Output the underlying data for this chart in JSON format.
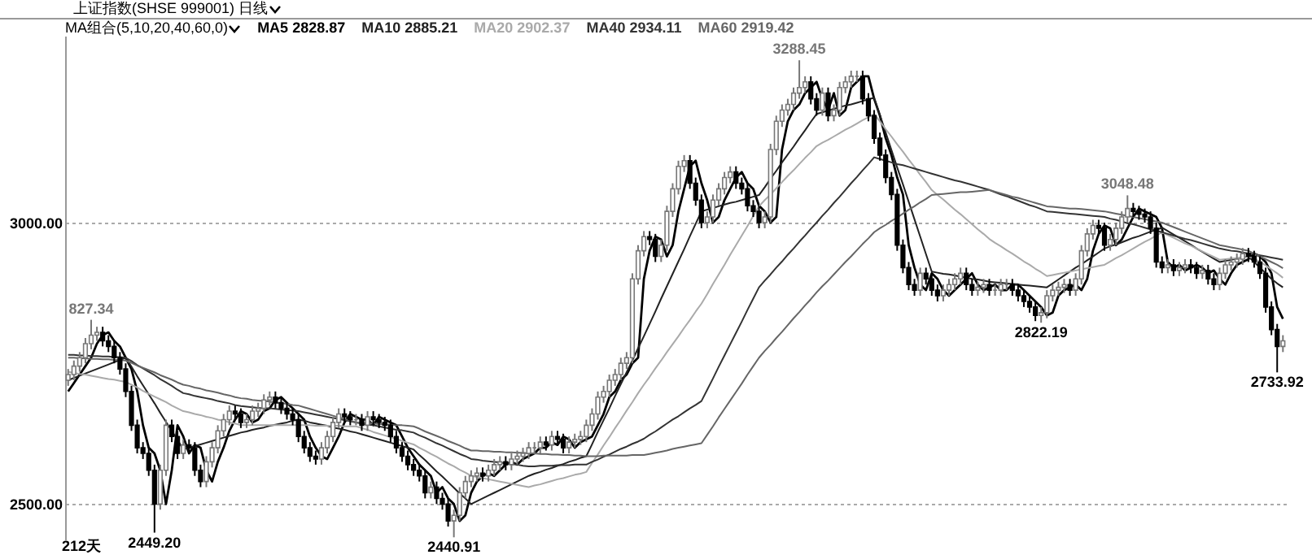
{
  "chart_data": {
    "type": "candlestick",
    "title": "上证指数(SHSE 999001) 日线",
    "subtitle": "MA组合(5,10,20,40,60,0)",
    "categories": [
      null,
      null,
      null,
      null,
      null,
      null,
      null,
      null,
      null,
      null,
      null,
      null,
      null,
      null,
      null,
      null,
      null,
      null,
      null,
      null,
      null,
      null,
      null,
      null,
      null,
      null,
      null,
      null,
      null,
      null,
      null,
      null,
      null,
      null,
      null,
      null,
      null,
      null,
      null,
      null,
      null,
      null,
      null,
      null,
      null,
      null,
      null,
      null,
      null,
      null,
      null,
      null,
      null,
      null,
      null,
      null,
      null,
      null,
      null,
      null,
      null,
      null,
      null,
      null,
      null,
      null,
      null,
      null,
      null,
      null,
      null,
      null,
      null,
      null,
      null,
      null,
      null,
      null,
      null,
      null,
      null,
      null,
      null,
      null,
      null,
      null,
      null,
      null,
      null,
      null,
      null,
      null,
      null,
      null,
      null,
      null,
      null,
      null,
      null,
      null,
      null,
      null,
      null,
      null,
      null,
      null,
      null,
      null,
      null,
      null,
      null,
      null,
      null,
      null,
      null,
      null,
      null,
      null,
      null,
      null,
      null,
      null,
      null,
      null,
      null,
      null,
      null,
      null,
      null,
      null,
      null,
      null,
      null,
      null,
      null,
      null,
      null,
      null,
      null,
      null,
      null,
      null,
      null,
      null,
      null,
      null,
      null,
      null,
      null,
      null,
      null,
      null,
      null,
      null,
      null,
      null,
      null,
      null,
      null,
      null,
      null,
      null,
      null,
      null,
      null,
      null,
      null,
      null,
      null,
      null,
      null,
      null,
      null,
      null,
      null,
      null,
      null,
      null,
      null,
      null,
      null,
      null,
      null,
      null,
      null,
      null,
      null,
      null,
      null,
      null,
      null,
      null,
      null,
      null,
      null,
      null,
      null,
      null,
      null,
      null,
      null,
      null,
      null,
      null,
      null,
      null,
      null,
      null,
      null,
      null,
      null,
      null
    ],
    "ohlc": [
      [
        2720,
        2740,
        2710,
        2730
      ],
      [
        2730,
        2755,
        2720,
        2745
      ],
      [
        2745,
        2770,
        2735,
        2760
      ],
      [
        2760,
        2795,
        2750,
        2785
      ],
      [
        2785,
        2827.34,
        2775,
        2800
      ],
      [
        2800,
        2815,
        2790,
        2805
      ],
      [
        2805,
        2815,
        2780,
        2790
      ],
      [
        2790,
        2800,
        2770,
        2780
      ],
      [
        2780,
        2790,
        2750,
        2760
      ],
      [
        2760,
        2770,
        2730,
        2740
      ],
      [
        2740,
        2750,
        2690,
        2700
      ],
      [
        2700,
        2710,
        2630,
        2640
      ],
      [
        2640,
        2650,
        2590,
        2600
      ],
      [
        2600,
        2610,
        2580,
        2590
      ],
      [
        2590,
        2600,
        2550,
        2560
      ],
      [
        2560,
        2570,
        2449.2,
        2500
      ],
      [
        2500,
        2570,
        2490,
        2560
      ],
      [
        2560,
        2650,
        2550,
        2640
      ],
      [
        2640,
        2650,
        2610,
        2620
      ],
      [
        2620,
        2630,
        2580,
        2590
      ],
      [
        2590,
        2615,
        2580,
        2605
      ],
      [
        2605,
        2615,
        2590,
        2600
      ],
      [
        2600,
        2610,
        2550,
        2560
      ],
      [
        2560,
        2570,
        2530,
        2540
      ],
      [
        2540,
        2585,
        2530,
        2575
      ],
      [
        2575,
        2610,
        2565,
        2600
      ],
      [
        2600,
        2640,
        2590,
        2630
      ],
      [
        2630,
        2660,
        2620,
        2650
      ],
      [
        2650,
        2675,
        2640,
        2665
      ],
      [
        2665,
        2675,
        2650,
        2660
      ],
      [
        2660,
        2670,
        2635,
        2645
      ],
      [
        2645,
        2660,
        2635,
        2650
      ],
      [
        2650,
        2675,
        2640,
        2665
      ],
      [
        2665,
        2680,
        2655,
        2670
      ],
      [
        2670,
        2695,
        2660,
        2685
      ],
      [
        2685,
        2700,
        2675,
        2690
      ],
      [
        2690,
        2700,
        2670,
        2680
      ],
      [
        2680,
        2690,
        2660,
        2670
      ],
      [
        2670,
        2680,
        2650,
        2660
      ],
      [
        2660,
        2670,
        2640,
        2650
      ],
      [
        2650,
        2660,
        2610,
        2620
      ],
      [
        2620,
        2630,
        2590,
        2600
      ],
      [
        2600,
        2610,
        2575,
        2585
      ],
      [
        2585,
        2595,
        2570,
        2580
      ],
      [
        2580,
        2610,
        2570,
        2600
      ],
      [
        2600,
        2630,
        2590,
        2620
      ],
      [
        2620,
        2655,
        2610,
        2645
      ],
      [
        2645,
        2670,
        2635,
        2660
      ],
      [
        2660,
        2670,
        2645,
        2655
      ],
      [
        2655,
        2665,
        2640,
        2650
      ],
      [
        2650,
        2660,
        2640,
        2650
      ],
      [
        2650,
        2660,
        2630,
        2640
      ],
      [
        2640,
        2665,
        2630,
        2655
      ],
      [
        2655,
        2665,
        2640,
        2650
      ],
      [
        2650,
        2660,
        2635,
        2645
      ],
      [
        2645,
        2655,
        2630,
        2640
      ],
      [
        2640,
        2650,
        2610,
        2620
      ],
      [
        2620,
        2630,
        2590,
        2600
      ],
      [
        2600,
        2610,
        2575,
        2585
      ],
      [
        2585,
        2595,
        2560,
        2570
      ],
      [
        2570,
        2580,
        2550,
        2560
      ],
      [
        2560,
        2570,
        2540,
        2550
      ],
      [
        2550,
        2560,
        2510,
        2520
      ],
      [
        2520,
        2540,
        2510,
        2530
      ],
      [
        2530,
        2540,
        2500,
        2510
      ],
      [
        2510,
        2520,
        2490,
        2500
      ],
      [
        2500,
        2510,
        2460,
        2470
      ],
      [
        2470,
        2490,
        2440.91,
        2480
      ],
      [
        2480,
        2530,
        2470,
        2520
      ],
      [
        2520,
        2550,
        2510,
        2540
      ],
      [
        2540,
        2560,
        2530,
        2550
      ],
      [
        2550,
        2565,
        2540,
        2555
      ],
      [
        2555,
        2565,
        2540,
        2550
      ],
      [
        2550,
        2570,
        2540,
        2560
      ],
      [
        2560,
        2580,
        2550,
        2570
      ],
      [
        2570,
        2585,
        2560,
        2575
      ],
      [
        2575,
        2585,
        2560,
        2570
      ],
      [
        2570,
        2590,
        2560,
        2580
      ],
      [
        2580,
        2595,
        2570,
        2585
      ],
      [
        2585,
        2600,
        2575,
        2590
      ],
      [
        2590,
        2610,
        2580,
        2600
      ],
      [
        2600,
        2610,
        2590,
        2600
      ],
      [
        2600,
        2620,
        2590,
        2610
      ],
      [
        2610,
        2620,
        2595,
        2605
      ],
      [
        2605,
        2630,
        2595,
        2620
      ],
      [
        2620,
        2630,
        2605,
        2615
      ],
      [
        2615,
        2625,
        2590,
        2600
      ],
      [
        2600,
        2620,
        2590,
        2610
      ],
      [
        2610,
        2625,
        2600,
        2615
      ],
      [
        2615,
        2630,
        2605,
        2620
      ],
      [
        2620,
        2650,
        2610,
        2640
      ],
      [
        2640,
        2670,
        2630,
        2660
      ],
      [
        2660,
        2700,
        2650,
        2690
      ],
      [
        2690,
        2710,
        2680,
        2700
      ],
      [
        2700,
        2730,
        2690,
        2720
      ],
      [
        2720,
        2740,
        2710,
        2730
      ],
      [
        2730,
        2760,
        2720,
        2750
      ],
      [
        2750,
        2770,
        2740,
        2760
      ],
      [
        2760,
        2910,
        2750,
        2900
      ],
      [
        2900,
        2960,
        2890,
        2950
      ],
      [
        2950,
        2985,
        2940,
        2975
      ],
      [
        2975,
        2985,
        2960,
        2970
      ],
      [
        2970,
        2980,
        2930,
        2940
      ],
      [
        2940,
        2970,
        2930,
        2960
      ],
      [
        2960,
        3030,
        2950,
        3020
      ],
      [
        3020,
        3070,
        3010,
        3060
      ],
      [
        3060,
        3110,
        3050,
        3100
      ],
      [
        3100,
        3120,
        3090,
        3110
      ],
      [
        3110,
        3120,
        3060,
        3070
      ],
      [
        3070,
        3080,
        3030,
        3040
      ],
      [
        3040,
        3050,
        2990,
        3000
      ],
      [
        3000,
        3020,
        2990,
        3010
      ],
      [
        3010,
        3050,
        3000,
        3040
      ],
      [
        3040,
        3070,
        3030,
        3060
      ],
      [
        3060,
        3090,
        3050,
        3080
      ],
      [
        3080,
        3100,
        3070,
        3090
      ],
      [
        3090,
        3100,
        3060,
        3070
      ],
      [
        3070,
        3080,
        3050,
        3060
      ],
      [
        3060,
        3070,
        3020,
        3030
      ],
      [
        3030,
        3040,
        3010,
        3020
      ],
      [
        3020,
        3030,
        2990,
        3000
      ],
      [
        3000,
        3020,
        2990,
        3010
      ],
      [
        3010,
        3140,
        3000,
        3130
      ],
      [
        3130,
        3190,
        3120,
        3180
      ],
      [
        3180,
        3210,
        3170,
        3200
      ],
      [
        3200,
        3220,
        3190,
        3210
      ],
      [
        3210,
        3240,
        3200,
        3230
      ],
      [
        3230,
        3288.45,
        3220,
        3240
      ],
      [
        3240,
        3260,
        3230,
        3250
      ],
      [
        3250,
        3260,
        3210,
        3220
      ],
      [
        3220,
        3230,
        3190,
        3200
      ],
      [
        3200,
        3240,
        3190,
        3230
      ],
      [
        3230,
        3240,
        3180,
        3190
      ],
      [
        3190,
        3210,
        3180,
        3200
      ],
      [
        3200,
        3250,
        3190,
        3240
      ],
      [
        3240,
        3260,
        3230,
        3250
      ],
      [
        3250,
        3270,
        3240,
        3260
      ],
      [
        3260,
        3270,
        3250,
        3260
      ],
      [
        3260,
        3270,
        3210,
        3220
      ],
      [
        3220,
        3230,
        3180,
        3190
      ],
      [
        3190,
        3200,
        3140,
        3150
      ],
      [
        3150,
        3160,
        3110,
        3120
      ],
      [
        3120,
        3130,
        3070,
        3080
      ],
      [
        3080,
        3090,
        3040,
        3050
      ],
      [
        3050,
        3060,
        2950,
        2960
      ],
      [
        2960,
        2970,
        2910,
        2920
      ],
      [
        2920,
        2930,
        2880,
        2890
      ],
      [
        2890,
        2900,
        2870,
        2880
      ],
      [
        2880,
        2920,
        2870,
        2910
      ],
      [
        2910,
        2920,
        2890,
        2900
      ],
      [
        2900,
        2910,
        2870,
        2880
      ],
      [
        2880,
        2890,
        2860,
        2870
      ],
      [
        2870,
        2890,
        2860,
        2880
      ],
      [
        2880,
        2900,
        2870,
        2890
      ],
      [
        2890,
        2910,
        2880,
        2900
      ],
      [
        2900,
        2920,
        2890,
        2910
      ],
      [
        2910,
        2920,
        2880,
        2890
      ],
      [
        2890,
        2900,
        2870,
        2880
      ],
      [
        2880,
        2895,
        2870,
        2885
      ],
      [
        2885,
        2900,
        2875,
        2890
      ],
      [
        2890,
        2900,
        2870,
        2880
      ],
      [
        2880,
        2890,
        2870,
        2880
      ],
      [
        2880,
        2900,
        2870,
        2890
      ],
      [
        2890,
        2900,
        2880,
        2890
      ],
      [
        2890,
        2900,
        2870,
        2880
      ],
      [
        2880,
        2890,
        2860,
        2870
      ],
      [
        2870,
        2880,
        2850,
        2860
      ],
      [
        2860,
        2870,
        2840,
        2850
      ],
      [
        2850,
        2860,
        2825,
        2835
      ],
      [
        2835,
        2850,
        2822.19,
        2840
      ],
      [
        2840,
        2880,
        2830,
        2870
      ],
      [
        2870,
        2890,
        2860,
        2880
      ],
      [
        2880,
        2895,
        2870,
        2885
      ],
      [
        2885,
        2900,
        2875,
        2890
      ],
      [
        2890,
        2900,
        2870,
        2880
      ],
      [
        2880,
        2910,
        2870,
        2900
      ],
      [
        2900,
        2960,
        2890,
        2950
      ],
      [
        2950,
        2990,
        2940,
        2980
      ],
      [
        2980,
        3005,
        2970,
        2995
      ],
      [
        2995,
        3005,
        2980,
        2990
      ],
      [
        2990,
        3000,
        2950,
        2960
      ],
      [
        2960,
        2980,
        2950,
        2970
      ],
      [
        2970,
        3000,
        2960,
        2990
      ],
      [
        2990,
        3020,
        2980,
        3010
      ],
      [
        3010,
        3048.48,
        3000,
        3025
      ],
      [
        3025,
        3035,
        3010,
        3020
      ],
      [
        3020,
        3030,
        3005,
        3015
      ],
      [
        3015,
        3025,
        3000,
        3010
      ],
      [
        3010,
        3020,
        2980,
        2990
      ],
      [
        2990,
        3000,
        2920,
        2930
      ],
      [
        2930,
        2940,
        2910,
        2920
      ],
      [
        2920,
        2935,
        2910,
        2925
      ],
      [
        2925,
        2935,
        2905,
        2915
      ],
      [
        2915,
        2930,
        2905,
        2920
      ],
      [
        2920,
        2935,
        2910,
        2925
      ],
      [
        2925,
        2935,
        2910,
        2920
      ],
      [
        2920,
        2930,
        2900,
        2910
      ],
      [
        2910,
        2925,
        2900,
        2915
      ],
      [
        2915,
        2925,
        2890,
        2900
      ],
      [
        2900,
        2910,
        2880,
        2890
      ],
      [
        2890,
        2920,
        2880,
        2910
      ],
      [
        2910,
        2935,
        2900,
        2925
      ],
      [
        2925,
        2940,
        2915,
        2930
      ],
      [
        2930,
        2945,
        2920,
        2935
      ],
      [
        2935,
        2955,
        2925,
        2945
      ],
      [
        2945,
        2955,
        2930,
        2940
      ],
      [
        2940,
        2950,
        2920,
        2930
      ],
      [
        2930,
        2940,
        2900,
        2910
      ],
      [
        2910,
        2920,
        2840,
        2850
      ],
      [
        2850,
        2860,
        2800,
        2810
      ],
      [
        2810,
        2820,
        2733.92,
        2780
      ],
      [
        2780,
        2800,
        2770,
        2790
      ]
    ],
    "series": [
      {
        "name": "MA5 2828.87",
        "color": "#000000",
        "type": "line",
        "values": [
          2700,
          2715,
          2730,
          2745,
          2760,
          2785,
          2800,
          2805,
          2790,
          2780,
          2760,
          2740,
          2700,
          2640,
          2600,
          2590,
          2560,
          2500,
          2560,
          2640,
          2620,
          2590,
          2605,
          2600,
          2560,
          2540,
          2575,
          2600,
          2630,
          2650,
          2665,
          2660,
          2645,
          2650,
          2665,
          2670,
          2685,
          2690,
          2680,
          2670,
          2660,
          2650,
          2620,
          2600,
          2585,
          2580,
          2600,
          2620,
          2645,
          2660,
          2655,
          2650,
          2650,
          2640,
          2655,
          2650,
          2645,
          2640,
          2620,
          2600,
          2585,
          2570,
          2560,
          2550,
          2520,
          2530,
          2510,
          2500,
          2470,
          2480,
          2520,
          2540,
          2550,
          2555,
          2550,
          2560,
          2570,
          2575,
          2570,
          2580,
          2585,
          2590,
          2600,
          2600,
          2610,
          2605,
          2620,
          2615,
          2600,
          2610,
          2615,
          2620,
          2640,
          2660,
          2690,
          2700,
          2720,
          2730,
          2750,
          2760,
          2900,
          2950,
          2975,
          2970,
          2940,
          2960,
          3020,
          3060,
          3100,
          3110,
          3070,
          3040,
          3000,
          3010,
          3040,
          3060,
          3080,
          3090,
          3070,
          3060,
          3030,
          3020,
          3000,
          3010,
          3130,
          3180,
          3200,
          3210,
          3230,
          3240,
          3250,
          3220,
          3200,
          3230,
          3190,
          3200,
          3240,
          3250,
          3260,
          3260,
          3220,
          3190,
          3150,
          3120,
          3080,
          3050,
          2960,
          2920,
          2890,
          2880,
          2910,
          2900,
          2880,
          2870,
          2880,
          2890,
          2900,
          2910,
          2890,
          2880,
          2885,
          2890,
          2880,
          2880,
          2890,
          2890,
          2880,
          2870,
          2860,
          2850,
          2835,
          2840,
          2870,
          2880,
          2885,
          2890,
          2880,
          2900,
          2950,
          2980,
          2995,
          2990,
          2960,
          2970,
          2990,
          3010,
          3025,
          3020,
          3015,
          3010,
          2990,
          2930,
          2920,
          2925,
          2915,
          2920,
          2925,
          2920,
          2910,
          2915,
          2900,
          2890,
          2910,
          2925,
          2930,
          2935,
          2945,
          2940,
          2930,
          2910,
          2850,
          2829
        ]
      },
      {
        "name": "MA10 2885.21",
        "color": "#222222",
        "type": "line",
        "values": [
          2720,
          2724,
          2728,
          2732,
          2736,
          2740,
          2744,
          2748,
          2752,
          2756,
          2760,
          2744,
          2727,
          2711,
          2695,
          2679,
          2662,
          2646,
          2630,
          2614,
          2597,
          2600,
          2603,
          2606,
          2609,
          2612,
          2615,
          2618,
          2621,
          2624,
          2627,
          2629,
          2632,
          2634,
          2636,
          2639,
          2641,
          2643,
          2645,
          2648,
          2650,
          2648,
          2645,
          2643,
          2641,
          2639,
          2636,
          2634,
          2632,
          2629,
          2627,
          2624,
          2621,
          2618,
          2615,
          2612,
          2609,
          2606,
          2603,
          2600,
          2597,
          2587,
          2578,
          2568,
          2558,
          2549,
          2539,
          2529,
          2519,
          2510,
          2500,
          2505,
          2510,
          2515,
          2520,
          2525,
          2530,
          2535,
          2540,
          2545,
          2550,
          2554,
          2557,
          2561,
          2564,
          2568,
          2571,
          2575,
          2578,
          2582,
          2585,
          2606,
          2628,
          2649,
          2670,
          2692,
          2713,
          2734,
          2755,
          2777,
          2798,
          2820,
          2842,
          2865,
          2887,
          2909,
          2931,
          2953,
          2976,
          2998,
          3020,
          3023,
          3026,
          3029,
          3032,
          3035,
          3037,
          3040,
          3043,
          3046,
          3049,
          3063,
          3078,
          3092,
          3107,
          3121,
          3135,
          3150,
          3164,
          3179,
          3193,
          3196,
          3199,
          3202,
          3205,
          3208,
          3210,
          3213,
          3216,
          3219,
          3222,
          3191,
          3160,
          3129,
          3098,
          3068,
          3037,
          3006,
          2975,
          2944,
          2913,
          2911,
          2909,
          2908,
          2906,
          2904,
          2902,
          2900,
          2899,
          2897,
          2895,
          2894,
          2893,
          2892,
          2891,
          2890,
          2889,
          2888,
          2887,
          2886,
          2885,
          2892,
          2899,
          2906,
          2913,
          2920,
          2926,
          2933,
          2940,
          2947,
          2954,
          2958,
          2961,
          2965,
          2969,
          2973,
          2976,
          2980,
          2984,
          2987,
          2991,
          2985,
          2979,
          2973,
          2967,
          2961,
          2954,
          2948,
          2942,
          2936,
          2930,
          2932,
          2934,
          2936,
          2938,
          2940,
          2930,
          2920,
          2910,
          2900,
          2892,
          2885
        ]
      },
      {
        "name": "MA20 2902.37",
        "color": "#aaaaaa",
        "type": "line",
        "values": [
          2735,
          2733,
          2731,
          2730,
          2728,
          2726,
          2724,
          2722,
          2721,
          2719,
          2717,
          2712,
          2707,
          2701,
          2696,
          2691,
          2686,
          2681,
          2675,
          2670,
          2665,
          2663,
          2660,
          2658,
          2655,
          2653,
          2650,
          2648,
          2645,
          2643,
          2640,
          2640,
          2640,
          2640,
          2640,
          2640,
          2640,
          2640,
          2640,
          2640,
          2640,
          2640,
          2640,
          2639,
          2639,
          2639,
          2639,
          2639,
          2638,
          2638,
          2638,
          2635,
          2632,
          2628,
          2625,
          2622,
          2619,
          2616,
          2612,
          2609,
          2606,
          2600,
          2595,
          2589,
          2584,
          2578,
          2572,
          2567,
          2561,
          2556,
          2550,
          2548,
          2546,
          2544,
          2542,
          2540,
          2538,
          2536,
          2534,
          2532,
          2530,
          2533,
          2535,
          2538,
          2541,
          2544,
          2546,
          2549,
          2552,
          2554,
          2557,
          2573,
          2588,
          2604,
          2619,
          2635,
          2650,
          2666,
          2681,
          2697,
          2712,
          2726,
          2741,
          2755,
          2770,
          2784,
          2798,
          2813,
          2827,
          2842,
          2856,
          2873,
          2891,
          2908,
          2925,
          2943,
          2960,
          2977,
          2994,
          3012,
          3029,
          3040,
          3050,
          3061,
          3072,
          3083,
          3093,
          3104,
          3115,
          3125,
          3136,
          3142,
          3147,
          3153,
          3159,
          3165,
          3170,
          3176,
          3182,
          3187,
          3193,
          3180,
          3166,
          3153,
          3139,
          3126,
          3112,
          3099,
          3085,
          3072,
          3058,
          3049,
          3041,
          3032,
          3023,
          3015,
          3006,
          2997,
          2988,
          2980,
          2971,
          2964,
          2958,
          2951,
          2945,
          2938,
          2931,
          2925,
          2918,
          2912,
          2905,
          2907,
          2909,
          2911,
          2913,
          2915,
          2917,
          2919,
          2921,
          2923,
          2925,
          2931,
          2937,
          2942,
          2948,
          2954,
          2960,
          2966,
          2971,
          2977,
          2983,
          2978,
          2973,
          2968,
          2963,
          2959,
          2954,
          2949,
          2944,
          2939,
          2934,
          2935,
          2936,
          2937,
          2938,
          2940,
          2936,
          2930,
          2924,
          2917,
          2910,
          2902
        ]
      },
      {
        "name": "MA40 2934.11",
        "color": "#333333",
        "type": "line",
        "values": [
          2765,
          2765,
          2764,
          2764,
          2763,
          2763,
          2762,
          2762,
          2761,
          2761,
          2760,
          2754,
          2747,
          2741,
          2735,
          2729,
          2722,
          2716,
          2710,
          2703,
          2697,
          2695,
          2692,
          2690,
          2688,
          2686,
          2683,
          2681,
          2679,
          2676,
          2674,
          2673,
          2672,
          2671,
          2670,
          2670,
          2669,
          2668,
          2667,
          2666,
          2665,
          2663,
          2661,
          2659,
          2657,
          2655,
          2653,
          2651,
          2649,
          2647,
          2645,
          2643,
          2641,
          2640,
          2638,
          2636,
          2634,
          2632,
          2631,
          2629,
          2627,
          2622,
          2618,
          2613,
          2608,
          2604,
          2599,
          2594,
          2589,
          2585,
          2580,
          2579,
          2577,
          2576,
          2575,
          2574,
          2572,
          2571,
          2570,
          2568,
          2567,
          2567,
          2568,
          2568,
          2568,
          2569,
          2569,
          2569,
          2570,
          2570,
          2570,
          2575,
          2579,
          2584,
          2588,
          2593,
          2598,
          2602,
          2607,
          2611,
          2616,
          2623,
          2629,
          2636,
          2643,
          2650,
          2656,
          2663,
          2670,
          2676,
          2683,
          2703,
          2723,
          2744,
          2764,
          2784,
          2804,
          2824,
          2845,
          2865,
          2885,
          2897,
          2908,
          2920,
          2931,
          2943,
          2954,
          2966,
          2977,
          2989,
          3000,
          3012,
          3023,
          3035,
          3046,
          3058,
          3070,
          3081,
          3093,
          3104,
          3116,
          3113,
          3110,
          3107,
          3104,
          3102,
          3099,
          3096,
          3093,
          3090,
          3087,
          3084,
          3081,
          3078,
          3075,
          3073,
          3070,
          3067,
          3064,
          3061,
          3058,
          3054,
          3050,
          3047,
          3043,
          3039,
          3035,
          3031,
          3028,
          3024,
          3020,
          3019,
          3018,
          3017,
          3016,
          3015,
          3014,
          3013,
          3012,
          3011,
          3010,
          3007,
          3005,
          3002,
          2999,
          2997,
          2994,
          2991,
          2988,
          2986,
          2983,
          2980,
          2977,
          2974,
          2971,
          2969,
          2966,
          2963,
          2960,
          2957,
          2954,
          2952,
          2950,
          2949,
          2947,
          2945,
          2944,
          2942,
          2940,
          2938,
          2936,
          2934
        ]
      },
      {
        "name": "MA60 2919.42",
        "color": "#666666",
        "type": "line",
        "values": [
          2760,
          2760,
          2759,
          2759,
          2758,
          2758,
          2757,
          2757,
          2756,
          2756,
          2755,
          2751,
          2746,
          2742,
          2738,
          2734,
          2729,
          2725,
          2721,
          2716,
          2712,
          2710,
          2707,
          2705,
          2702,
          2700,
          2698,
          2695,
          2693,
          2690,
          2688,
          2687,
          2685,
          2684,
          2683,
          2682,
          2680,
          2679,
          2678,
          2676,
          2675,
          2672,
          2669,
          2666,
          2663,
          2660,
          2657,
          2654,
          2651,
          2648,
          2645,
          2644,
          2644,
          2643,
          2642,
          2642,
          2641,
          2640,
          2640,
          2639,
          2638,
          2634,
          2629,
          2625,
          2621,
          2617,
          2612,
          2608,
          2604,
          2599,
          2595,
          2595,
          2594,
          2594,
          2593,
          2593,
          2592,
          2592,
          2591,
          2591,
          2590,
          2590,
          2589,
          2589,
          2588,
          2588,
          2587,
          2587,
          2586,
          2586,
          2585,
          2585,
          2585,
          2586,
          2586,
          2586,
          2586,
          2586,
          2587,
          2587,
          2587,
          2589,
          2591,
          2593,
          2595,
          2598,
          2600,
          2602,
          2604,
          2606,
          2608,
          2623,
          2638,
          2654,
          2669,
          2684,
          2699,
          2714,
          2730,
          2745,
          2760,
          2772,
          2783,
          2795,
          2806,
          2818,
          2830,
          2841,
          2853,
          2864,
          2876,
          2887,
          2897,
          2908,
          2919,
          2930,
          2940,
          2951,
          2962,
          2972,
          2983,
          2990,
          2996,
          3003,
          3009,
          3016,
          3023,
          3029,
          3036,
          3042,
          3049,
          3050,
          3051,
          3052,
          3053,
          3054,
          3054,
          3055,
          3056,
          3057,
          3058,
          3055,
          3052,
          3049,
          3046,
          3044,
          3041,
          3038,
          3035,
          3032,
          3029,
          3028,
          3027,
          3026,
          3025,
          3025,
          3024,
          3023,
          3022,
          3021,
          3020,
          3018,
          3016,
          3014,
          3012,
          3010,
          3008,
          3006,
          3004,
          3002,
          3000,
          2996,
          2992,
          2988,
          2984,
          2980,
          2976,
          2972,
          2968,
          2964,
          2960,
          2958,
          2956,
          2954,
          2952,
          2950,
          2945,
          2940,
          2935,
          2930,
          2925,
          2919
        ]
      }
    ],
    "ylim": [
      2437,
      3332
    ],
    "yticks": [
      {
        "value": 2500,
        "label": "2500.00"
      },
      {
        "value": 3000,
        "label": "3000.00"
      }
    ],
    "tick_labels": "y",
    "grid": "y",
    "annotations": [
      {
        "text": "827.34",
        "y": 2827.34
      },
      {
        "text": "2449.20",
        "y": 2449.2
      },
      {
        "text": "2440.91",
        "y": 2440.91
      },
      {
        "text": "3288.45",
        "y": 3288.45
      },
      {
        "text": "2822.19",
        "y": 2822.19
      },
      {
        "text": "3048.48",
        "y": 3048.48
      },
      {
        "text": "2733.92",
        "y": 2733.92
      },
      "212天"
    ]
  }
}
